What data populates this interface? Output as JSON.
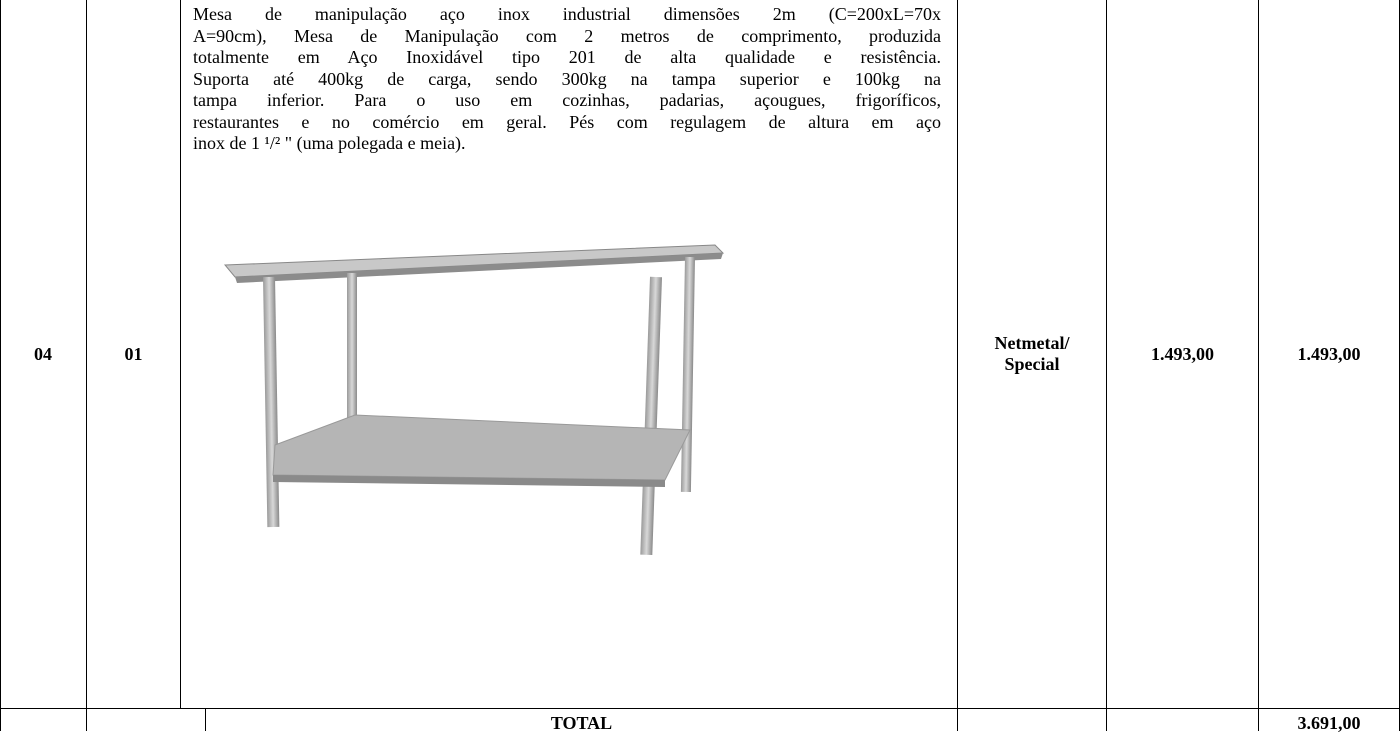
{
  "table": {
    "rows": [
      {
        "item": "04",
        "quantity": "01",
        "description": [
          "Mesa de manipulação aço inox industrial dimensões 2m (C=200xL=70x",
          "A=90cm), Mesa de Manipulação com 2 metros de comprimento, produzida",
          "totalmente em Aço Inoxidável tipo 201 de alta qualidade e resistência.",
          "Suporta até 400kg de carga, sendo 300kg na tampa superior e 100kg na",
          "tampa inferior. Para o uso em cozinhas, padarias, açougues, frigoríficos,",
          "restaurantes e no comércio em geral. Pés com regulagem de altura em aço",
          "inox de 1 ¹/² \" (uma polegada e meia)."
        ],
        "brand": [
          "Netmetal/",
          "Special"
        ],
        "unit_price": "1.493,00",
        "total_price": "1.493,00"
      }
    ],
    "total": {
      "label": "TOTAL",
      "value": "3.691,00"
    }
  }
}
